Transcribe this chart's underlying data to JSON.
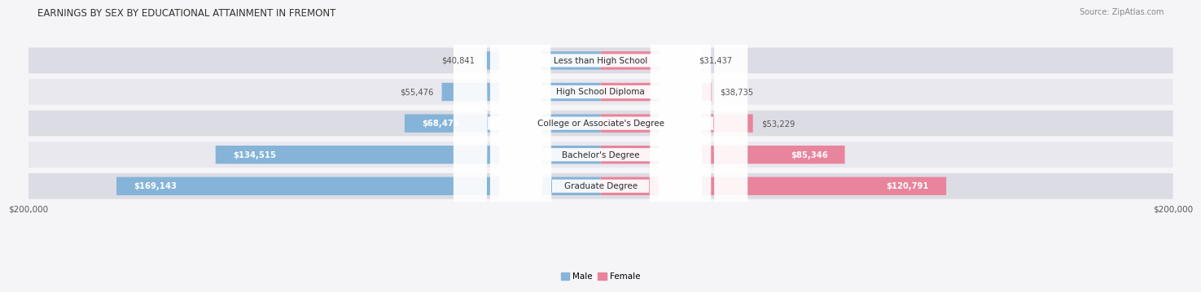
{
  "title": "EARNINGS BY SEX BY EDUCATIONAL ATTAINMENT IN FREMONT",
  "source": "Source: ZipAtlas.com",
  "categories": [
    "Less than High School",
    "High School Diploma",
    "College or Associate's Degree",
    "Bachelor's Degree",
    "Graduate Degree"
  ],
  "male_values": [
    40841,
    55476,
    68476,
    134515,
    169143
  ],
  "female_values": [
    31437,
    38735,
    53229,
    85346,
    120791
  ],
  "male_color": "#85b4d8",
  "female_color": "#e8849c",
  "max_val": 200000,
  "bg_color": "#f5f5f8",
  "row_bg_color": "#e8e8ee",
  "title_fontsize": 8.5,
  "label_fontsize": 7.5,
  "value_fontsize": 7.2,
  "tick_fontsize": 7.5,
  "source_fontsize": 7.0
}
